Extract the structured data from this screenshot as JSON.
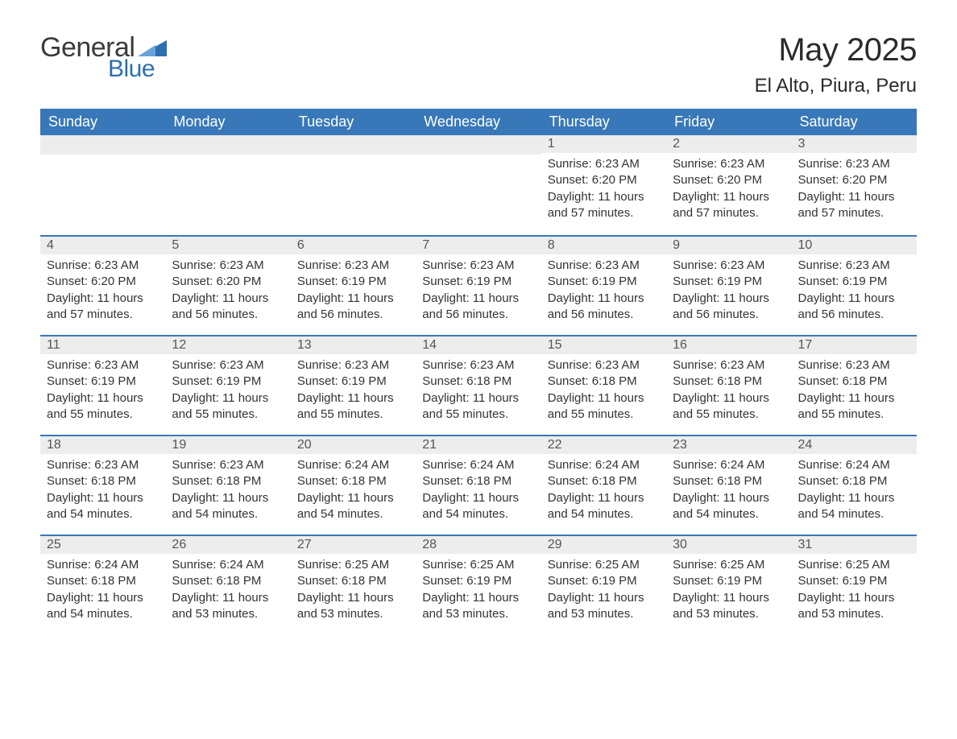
{
  "logo": {
    "text1": "General",
    "text2": "Blue",
    "accent_color": "#2c6fb0"
  },
  "title": "May 2025",
  "location": "El Alto, Piura, Peru",
  "colors": {
    "header_bg": "#3878b8",
    "header_text": "#ffffff",
    "daynum_bg": "#ededed",
    "row_divider": "#3878b8",
    "body_text": "#333333"
  },
  "weekdays": [
    "Sunday",
    "Monday",
    "Tuesday",
    "Wednesday",
    "Thursday",
    "Friday",
    "Saturday"
  ],
  "labels": {
    "sunrise": "Sunrise:",
    "sunset": "Sunset:",
    "daylight": "Daylight:"
  },
  "weeks": [
    [
      null,
      null,
      null,
      null,
      {
        "n": "1",
        "sunrise": "6:23 AM",
        "sunset": "6:20 PM",
        "daylight": "11 hours and 57 minutes."
      },
      {
        "n": "2",
        "sunrise": "6:23 AM",
        "sunset": "6:20 PM",
        "daylight": "11 hours and 57 minutes."
      },
      {
        "n": "3",
        "sunrise": "6:23 AM",
        "sunset": "6:20 PM",
        "daylight": "11 hours and 57 minutes."
      }
    ],
    [
      {
        "n": "4",
        "sunrise": "6:23 AM",
        "sunset": "6:20 PM",
        "daylight": "11 hours and 57 minutes."
      },
      {
        "n": "5",
        "sunrise": "6:23 AM",
        "sunset": "6:20 PM",
        "daylight": "11 hours and 56 minutes."
      },
      {
        "n": "6",
        "sunrise": "6:23 AM",
        "sunset": "6:19 PM",
        "daylight": "11 hours and 56 minutes."
      },
      {
        "n": "7",
        "sunrise": "6:23 AM",
        "sunset": "6:19 PM",
        "daylight": "11 hours and 56 minutes."
      },
      {
        "n": "8",
        "sunrise": "6:23 AM",
        "sunset": "6:19 PM",
        "daylight": "11 hours and 56 minutes."
      },
      {
        "n": "9",
        "sunrise": "6:23 AM",
        "sunset": "6:19 PM",
        "daylight": "11 hours and 56 minutes."
      },
      {
        "n": "10",
        "sunrise": "6:23 AM",
        "sunset": "6:19 PM",
        "daylight": "11 hours and 56 minutes."
      }
    ],
    [
      {
        "n": "11",
        "sunrise": "6:23 AM",
        "sunset": "6:19 PM",
        "daylight": "11 hours and 55 minutes."
      },
      {
        "n": "12",
        "sunrise": "6:23 AM",
        "sunset": "6:19 PM",
        "daylight": "11 hours and 55 minutes."
      },
      {
        "n": "13",
        "sunrise": "6:23 AM",
        "sunset": "6:19 PM",
        "daylight": "11 hours and 55 minutes."
      },
      {
        "n": "14",
        "sunrise": "6:23 AM",
        "sunset": "6:18 PM",
        "daylight": "11 hours and 55 minutes."
      },
      {
        "n": "15",
        "sunrise": "6:23 AM",
        "sunset": "6:18 PM",
        "daylight": "11 hours and 55 minutes."
      },
      {
        "n": "16",
        "sunrise": "6:23 AM",
        "sunset": "6:18 PM",
        "daylight": "11 hours and 55 minutes."
      },
      {
        "n": "17",
        "sunrise": "6:23 AM",
        "sunset": "6:18 PM",
        "daylight": "11 hours and 55 minutes."
      }
    ],
    [
      {
        "n": "18",
        "sunrise": "6:23 AM",
        "sunset": "6:18 PM",
        "daylight": "11 hours and 54 minutes."
      },
      {
        "n": "19",
        "sunrise": "6:23 AM",
        "sunset": "6:18 PM",
        "daylight": "11 hours and 54 minutes."
      },
      {
        "n": "20",
        "sunrise": "6:24 AM",
        "sunset": "6:18 PM",
        "daylight": "11 hours and 54 minutes."
      },
      {
        "n": "21",
        "sunrise": "6:24 AM",
        "sunset": "6:18 PM",
        "daylight": "11 hours and 54 minutes."
      },
      {
        "n": "22",
        "sunrise": "6:24 AM",
        "sunset": "6:18 PM",
        "daylight": "11 hours and 54 minutes."
      },
      {
        "n": "23",
        "sunrise": "6:24 AM",
        "sunset": "6:18 PM",
        "daylight": "11 hours and 54 minutes."
      },
      {
        "n": "24",
        "sunrise": "6:24 AM",
        "sunset": "6:18 PM",
        "daylight": "11 hours and 54 minutes."
      }
    ],
    [
      {
        "n": "25",
        "sunrise": "6:24 AM",
        "sunset": "6:18 PM",
        "daylight": "11 hours and 54 minutes."
      },
      {
        "n": "26",
        "sunrise": "6:24 AM",
        "sunset": "6:18 PM",
        "daylight": "11 hours and 53 minutes."
      },
      {
        "n": "27",
        "sunrise": "6:25 AM",
        "sunset": "6:18 PM",
        "daylight": "11 hours and 53 minutes."
      },
      {
        "n": "28",
        "sunrise": "6:25 AM",
        "sunset": "6:19 PM",
        "daylight": "11 hours and 53 minutes."
      },
      {
        "n": "29",
        "sunrise": "6:25 AM",
        "sunset": "6:19 PM",
        "daylight": "11 hours and 53 minutes."
      },
      {
        "n": "30",
        "sunrise": "6:25 AM",
        "sunset": "6:19 PM",
        "daylight": "11 hours and 53 minutes."
      },
      {
        "n": "31",
        "sunrise": "6:25 AM",
        "sunset": "6:19 PM",
        "daylight": "11 hours and 53 minutes."
      }
    ]
  ]
}
